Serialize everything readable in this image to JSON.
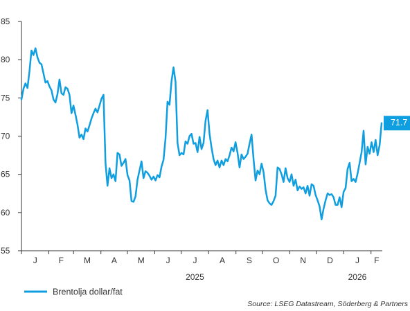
{
  "chart_data": {
    "type": "line",
    "title": "",
    "xlabel": "",
    "ylabel": "",
    "ylim": [
      55,
      85
    ],
    "yticks": [
      55,
      60,
      65,
      70,
      75,
      80,
      85
    ],
    "grid": false,
    "legend_position": "bottom-left",
    "color": "#0f9ee0",
    "x_month_labels": [
      "J",
      "F",
      "M",
      "A",
      "M",
      "J",
      "J",
      "A",
      "S",
      "O",
      "N",
      "D",
      "J",
      "F"
    ],
    "year_labels": [
      {
        "label": "2025",
        "under_month_index": 6
      },
      {
        "label": "2026",
        "under_month_index": 12
      }
    ],
    "end_label": "71.7",
    "series": [
      {
        "name": "Brentolja dollar/fat",
        "start_date": "2025-01-01",
        "end_date": "2026-02-13",
        "values": [
          74.8,
          76.2,
          76.9,
          76.3,
          78.5,
          81.2,
          80.6,
          81.5,
          80.3,
          79.6,
          79.4,
          78.2,
          77.0,
          77.2,
          76.5,
          76.0,
          74.8,
          74.4,
          75.5,
          77.4,
          75.6,
          75.4,
          76.4,
          76.2,
          75.4,
          73.0,
          74.0,
          72.8,
          71.5,
          69.8,
          70.2,
          69.6,
          71.0,
          70.6,
          71.4,
          72.3,
          73.0,
          73.6,
          73.1,
          74.0,
          74.9,
          75.4,
          66.5,
          63.5,
          65.8,
          64.5,
          65.0,
          64.1,
          67.8,
          67.6,
          66.1,
          66.5,
          67.0,
          64.9,
          64.2,
          61.5,
          61.4,
          62.1,
          64.3,
          65.5,
          66.7,
          64.5,
          65.4,
          65.2,
          64.8,
          64.3,
          64.7,
          64.2,
          64.9,
          64.6,
          66.0,
          66.9,
          69.7,
          74.5,
          74.1,
          77.2,
          79.0,
          77.1,
          69.1,
          67.5,
          67.8,
          67.6,
          69.3,
          69.0,
          70.0,
          70.3,
          69.0,
          69.1,
          67.9,
          69.9,
          68.3,
          69.1,
          72.0,
          73.4,
          70.3,
          68.5,
          67.0,
          66.2,
          66.8,
          65.9,
          66.8,
          66.2,
          67.0,
          66.7,
          67.5,
          68.5,
          68.0,
          69.2,
          67.8,
          65.9,
          67.6,
          67.0,
          67.3,
          67.7,
          69.0,
          70.2,
          67.0,
          64.2,
          65.5,
          65.0,
          66.4,
          65.3,
          63.0,
          61.6,
          61.2,
          61.0,
          61.5,
          62.2,
          65.9,
          65.7,
          65.0,
          64.0,
          65.8,
          64.5,
          64.0,
          65.0,
          63.5,
          64.3,
          62.9,
          63.4,
          63.1,
          63.3,
          62.5,
          63.5,
          62.2,
          63.7,
          63.5,
          62.3,
          61.6,
          60.8,
          59.1,
          60.5,
          61.6,
          62.5,
          62.3,
          62.4,
          62.0,
          61.0,
          61.0,
          62.0,
          60.7,
          62.7,
          63.2,
          65.7,
          66.5,
          64.1,
          64.4,
          64.0,
          65.1,
          66.5,
          67.9,
          70.7,
          66.3,
          68.6,
          67.7,
          69.2,
          67.9,
          69.5,
          67.5,
          68.8,
          71.7
        ]
      }
    ]
  },
  "legend": {
    "series_label": "Brentolja dollar/fat"
  },
  "source": "Source: LSEG Datastream, Söderberg & Partners"
}
